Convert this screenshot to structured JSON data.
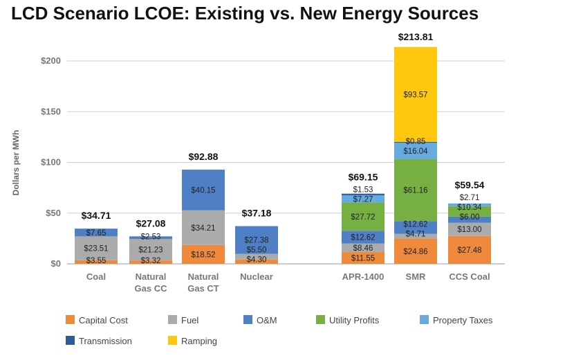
{
  "chart_data": {
    "type": "stacked-bar",
    "title": "LCD Scenario LCOE: Existing vs. New Energy Sources",
    "ylabel": "Dollars per MWh",
    "xlabel": "",
    "ylim": [
      0,
      200
    ],
    "yticks": [
      0,
      50,
      100,
      150,
      200
    ],
    "ytick_labels": [
      "$0",
      "$50",
      "$100",
      "$150",
      "$200"
    ],
    "grid": true,
    "legend_position": "bottom",
    "categories": [
      "Coal",
      "Natural Gas CC",
      "Natural Gas CT",
      "Nuclear",
      "APR-1400",
      "SMR",
      "CCS Coal"
    ],
    "category_labels": [
      [
        "Coal"
      ],
      [
        "Natural",
        "Gas CC"
      ],
      [
        "Natural",
        "Gas CT"
      ],
      [
        "Nuclear"
      ],
      [
        "APR-1400"
      ],
      [
        "SMR"
      ],
      [
        "CCS Coal"
      ]
    ],
    "totals": [
      34.71,
      27.08,
      92.88,
      37.18,
      69.15,
      213.81,
      59.54
    ],
    "total_labels": [
      "$34.71",
      "$27.08",
      "$92.88",
      "$37.18",
      "$69.15",
      "$213.81",
      "$59.54"
    ],
    "series": [
      {
        "name": "Capital Cost",
        "color": "#EF8A3C",
        "values": [
          3.55,
          3.32,
          18.52,
          4.3,
          11.55,
          24.86,
          27.48
        ],
        "labels": [
          "$3.55",
          "$3.32",
          "$18.52",
          "$4.30",
          "$11.55",
          "$24.86",
          "$27.48"
        ]
      },
      {
        "name": "Fuel",
        "color": "#ABABAB",
        "values": [
          23.51,
          21.23,
          34.21,
          5.5,
          8.46,
          4.71,
          13.0
        ],
        "labels": [
          "$23.51",
          "$21.23",
          "$34.21",
          "$5.50",
          "$8.46",
          "$4.71",
          "$13.00"
        ]
      },
      {
        "name": "O&M",
        "color": "#4F7FC5",
        "values": [
          7.65,
          2.53,
          40.15,
          27.38,
          12.62,
          12.62,
          6.0
        ],
        "labels": [
          "$7.65",
          "$2.53",
          "$40.15",
          "$27.38",
          "$12.62",
          "$12.62",
          "$6.00"
        ]
      },
      {
        "name": "Utility Profits",
        "color": "#76B043",
        "values": [
          0,
          0,
          0,
          0,
          27.72,
          61.16,
          10.34
        ],
        "labels": [
          "",
          "",
          "",
          "",
          "$27.72",
          "$61.16",
          "$10.34"
        ]
      },
      {
        "name": "Property Taxes",
        "color": "#67AAE0",
        "values": [
          0,
          0,
          0,
          0,
          7.27,
          16.04,
          2.71
        ],
        "labels": [
          "",
          "",
          "",
          "",
          "$7.27",
          "$16.04",
          "$2.71"
        ]
      },
      {
        "name": "Transmission",
        "color": "#2D5C9C",
        "values": [
          0,
          0,
          0,
          0,
          1.53,
          0.85,
          0
        ],
        "labels": [
          "",
          "",
          "",
          "",
          "$1.53",
          "$0.85",
          ""
        ]
      },
      {
        "name": "Ramping",
        "color": "#FFC80F",
        "values": [
          0,
          0,
          0,
          0,
          0,
          93.57,
          0
        ],
        "labels": [
          "",
          "",
          "",
          "",
          "",
          "$93.57",
          ""
        ]
      }
    ]
  }
}
